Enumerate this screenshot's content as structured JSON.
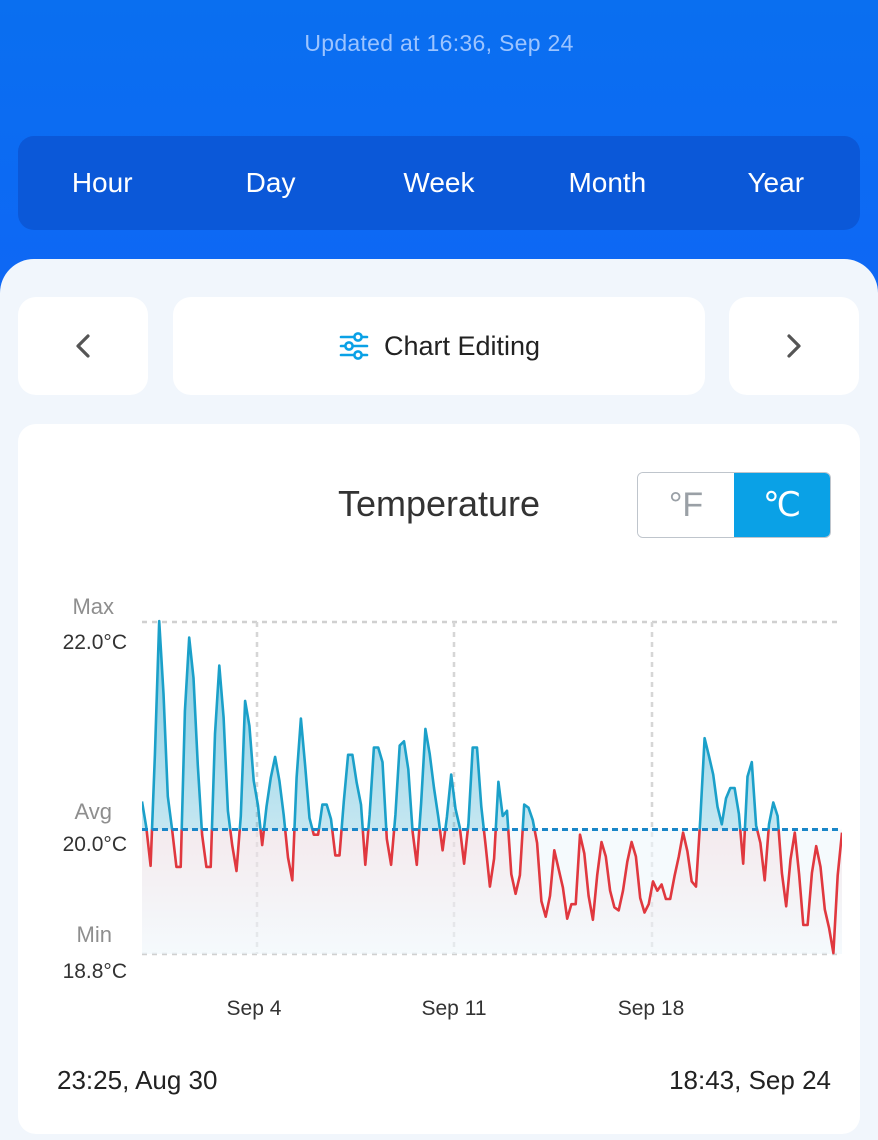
{
  "header": {
    "updated_text": "Updated at 16:36,  Sep 24",
    "periods": [
      "Hour",
      "Day",
      "Week",
      "Month",
      "Year"
    ]
  },
  "toolbar": {
    "edit_label": "Chart Editing"
  },
  "chart_card": {
    "title": "Temperature",
    "unit_f": "°F",
    "unit_c": "℃",
    "selected_unit": "C",
    "max_label": "Max",
    "max_value": "22.0°C",
    "avg_label": "Avg",
    "avg_value": "20.0°C",
    "min_label": "Min",
    "min_value": "18.8°C",
    "range_start": "23:25,  Aug 30",
    "range_end": "18:43,  Sep 24"
  },
  "colors": {
    "header_blue": "#0e67f5",
    "accent": "#0aa1e6",
    "above_avg_line": "#1ba0c9",
    "below_avg_line": "#e0383f"
  },
  "icons": {
    "prev": "chevron-left-icon",
    "next": "chevron-right-icon",
    "edit": "sliders-icon"
  },
  "chart_data": {
    "type": "line",
    "title": "Temperature",
    "unit": "°C",
    "ylim": [
      18.8,
      22.0
    ],
    "reference_lines": {
      "max": 22.0,
      "avg": 20.0,
      "min": 18.8
    },
    "x_ticks": [
      "Sep 4",
      "Sep 11",
      "Sep 18"
    ],
    "x_range": [
      "23:25, Aug 30",
      "18:43, Sep 24"
    ],
    "series": [
      {
        "values": [
          20.27,
          20.02,
          19.65,
          20.72,
          22.01,
          21.31,
          20.32,
          20.0,
          19.64,
          19.64,
          21.14,
          21.85,
          21.46,
          20.62,
          19.95,
          19.64,
          19.64,
          20.92,
          21.58,
          21.08,
          20.18,
          19.85,
          19.6,
          20.13,
          21.24,
          21.0,
          20.47,
          20.23,
          19.85,
          20.22,
          20.5,
          20.7,
          20.47,
          20.14,
          19.73,
          19.51,
          20.5,
          21.07,
          20.61,
          20.11,
          19.95,
          19.95,
          20.24,
          20.24,
          20.1,
          19.75,
          19.75,
          20.27,
          20.72,
          20.72,
          20.45,
          20.24,
          19.66,
          20.14,
          20.79,
          20.79,
          20.65,
          19.91,
          19.66,
          20.14,
          20.81,
          20.85,
          20.58,
          19.98,
          19.66,
          20.25,
          20.97,
          20.73,
          20.4,
          20.12,
          19.8,
          20.12,
          20.53,
          20.2,
          20.02,
          19.67,
          20.05,
          20.79,
          20.79,
          20.22,
          19.85,
          19.45,
          19.72,
          20.46,
          20.13,
          20.18,
          19.57,
          19.38,
          19.56,
          20.24,
          20.21,
          20.09,
          19.87,
          19.31,
          19.16,
          19.36,
          19.8,
          19.62,
          19.44,
          19.14,
          19.28,
          19.28,
          19.95,
          19.77,
          19.36,
          19.13,
          19.56,
          19.88,
          19.74,
          19.41,
          19.25,
          19.22,
          19.41,
          19.69,
          19.88,
          19.74,
          19.34,
          19.2,
          19.28,
          19.5,
          19.41,
          19.47,
          19.33,
          19.33,
          19.55,
          19.74,
          19.97,
          19.79,
          19.5,
          19.45,
          20.1,
          20.88,
          20.71,
          20.53,
          20.22,
          20.05,
          20.3,
          20.4,
          20.4,
          20.15,
          19.67,
          20.51,
          20.65,
          20.04,
          19.87,
          19.51,
          20.05,
          20.26,
          20.13,
          19.58,
          19.26,
          19.71,
          19.97,
          19.57,
          19.08,
          19.08,
          19.58,
          19.84,
          19.64,
          19.23,
          19.05,
          18.81,
          19.56,
          19.97
        ]
      }
    ]
  }
}
